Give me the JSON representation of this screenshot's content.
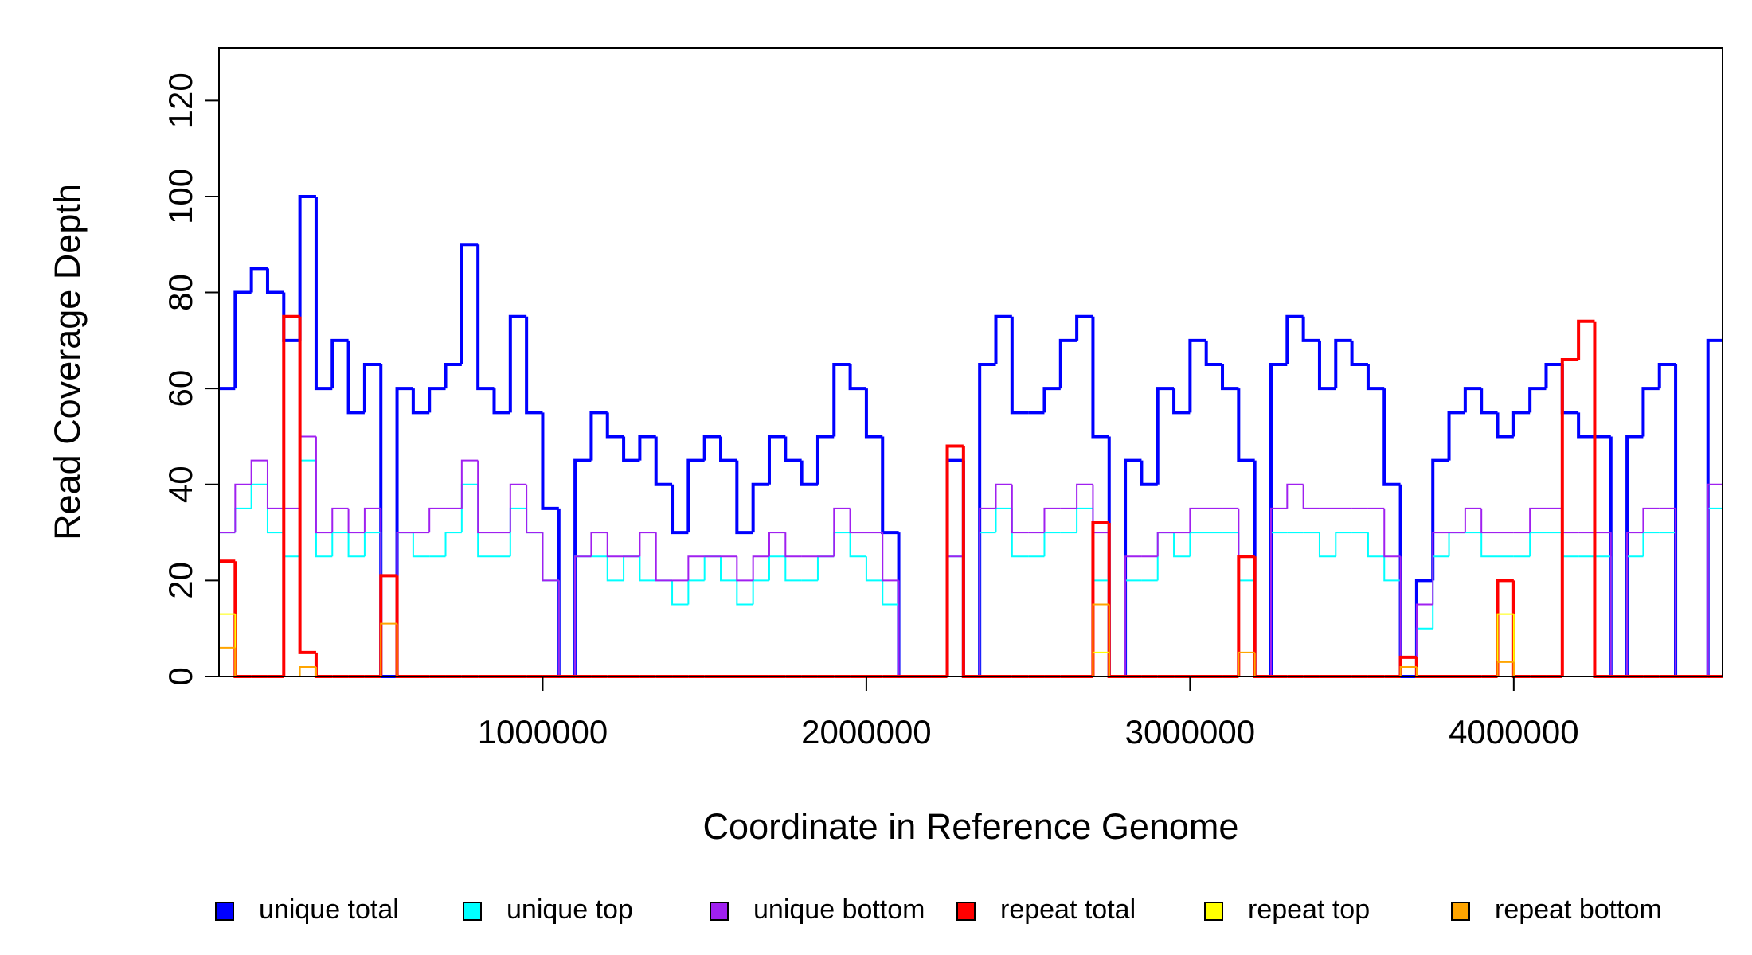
{
  "chart_data": {
    "type": "step",
    "xlabel": "Coordinate in Reference Genome",
    "ylabel": "Read Coverage Depth",
    "xlim": [
      0,
      4645000
    ],
    "ylim": [
      0,
      131
    ],
    "xticks": [
      1000000,
      2000000,
      3000000,
      4000000
    ],
    "yticks": [
      0,
      20,
      40,
      60,
      80,
      100,
      120
    ],
    "x": [
      0,
      50000,
      100000,
      150000,
      200000,
      250000,
      300000,
      350000,
      400000,
      450000,
      500000,
      550000,
      600000,
      650000,
      700000,
      750000,
      800000,
      850000,
      900000,
      950000,
      1000000,
      1050000,
      1100000,
      1150000,
      1200000,
      1250000,
      1300000,
      1350000,
      1400000,
      1450000,
      1500000,
      1550000,
      1600000,
      1650000,
      1700000,
      1750000,
      1800000,
      1850000,
      1900000,
      1950000,
      2000000,
      2050000,
      2100000,
      2150000,
      2200000,
      2250000,
      2300000,
      2350000,
      2400000,
      2450000,
      2500000,
      2550000,
      2600000,
      2650000,
      2700000,
      2750000,
      2800000,
      2850000,
      2900000,
      2950000,
      3000000,
      3050000,
      3100000,
      3150000,
      3200000,
      3250000,
      3300000,
      3350000,
      3400000,
      3450000,
      3500000,
      3550000,
      3600000,
      3650000,
      3700000,
      3750000,
      3800000,
      3850000,
      3900000,
      3950000,
      4000000,
      4050000,
      4100000,
      4150000,
      4200000,
      4250000,
      4300000,
      4350000,
      4400000,
      4450000,
      4500000,
      4550000,
      4600000
    ],
    "series": [
      {
        "name": "unique total",
        "color": "#0000ff",
        "values": [
          60,
          80,
          85,
          80,
          70,
          100,
          60,
          70,
          55,
          65,
          0,
          60,
          55,
          60,
          65,
          90,
          60,
          55,
          75,
          55,
          35,
          0,
          45,
          55,
          50,
          45,
          50,
          40,
          30,
          45,
          50,
          45,
          30,
          40,
          50,
          45,
          40,
          50,
          65,
          60,
          50,
          30,
          0,
          0,
          0,
          45,
          0,
          65,
          75,
          55,
          55,
          60,
          70,
          75,
          50,
          0,
          45,
          40,
          60,
          55,
          70,
          65,
          60,
          45,
          0,
          65,
          75,
          70,
          60,
          70,
          65,
          60,
          40,
          0,
          20,
          45,
          55,
          60,
          55,
          50,
          55,
          60,
          65,
          55,
          50,
          50,
          0,
          50,
          60,
          65,
          0,
          0,
          70
        ]
      },
      {
        "name": "unique top",
        "color": "#00ffff",
        "values": [
          30,
          35,
          40,
          30,
          25,
          45,
          25,
          30,
          25,
          30,
          0,
          30,
          25,
          25,
          30,
          40,
          25,
          25,
          35,
          30,
          20,
          0,
          25,
          25,
          20,
          25,
          20,
          20,
          15,
          20,
          25,
          20,
          15,
          20,
          25,
          20,
          20,
          25,
          30,
          25,
          20,
          15,
          0,
          0,
          0,
          25,
          0,
          30,
          35,
          25,
          25,
          30,
          30,
          35,
          20,
          0,
          20,
          20,
          30,
          25,
          30,
          30,
          30,
          20,
          0,
          30,
          30,
          30,
          25,
          30,
          30,
          25,
          20,
          0,
          10,
          25,
          30,
          30,
          25,
          25,
          25,
          30,
          30,
          25,
          25,
          25,
          0,
          25,
          30,
          30,
          0,
          0,
          35
        ]
      },
      {
        "name": "unique bottom",
        "color": "#a020f0",
        "values": [
          30,
          40,
          45,
          35,
          35,
          50,
          30,
          35,
          30,
          35,
          0,
          30,
          30,
          35,
          35,
          45,
          30,
          30,
          40,
          30,
          20,
          0,
          25,
          30,
          25,
          25,
          30,
          20,
          20,
          25,
          25,
          25,
          20,
          25,
          30,
          25,
          25,
          25,
          35,
          30,
          30,
          20,
          0,
          0,
          0,
          25,
          0,
          35,
          40,
          30,
          30,
          35,
          35,
          40,
          30,
          0,
          25,
          25,
          30,
          30,
          35,
          35,
          35,
          25,
          0,
          35,
          40,
          35,
          35,
          35,
          35,
          35,
          25,
          0,
          15,
          30,
          30,
          35,
          30,
          30,
          30,
          35,
          35,
          30,
          30,
          30,
          0,
          30,
          35,
          35,
          0,
          0,
          40
        ]
      },
      {
        "name": "repeat total",
        "color": "#ff0000",
        "values": [
          24,
          0,
          0,
          0,
          75,
          5,
          0,
          0,
          0,
          0,
          21,
          0,
          0,
          0,
          0,
          0,
          0,
          0,
          0,
          0,
          0,
          0,
          0,
          0,
          0,
          0,
          0,
          0,
          0,
          0,
          0,
          0,
          0,
          0,
          0,
          0,
          0,
          0,
          0,
          0,
          0,
          0,
          0,
          0,
          0,
          48,
          0,
          0,
          0,
          0,
          0,
          0,
          0,
          0,
          32,
          0,
          0,
          0,
          0,
          0,
          0,
          0,
          0,
          25,
          0,
          0,
          0,
          0,
          0,
          0,
          0,
          0,
          0,
          4,
          0,
          0,
          0,
          0,
          0,
          20,
          0,
          0,
          0,
          66,
          74,
          0,
          0,
          0,
          0,
          0,
          0,
          0,
          0
        ]
      },
      {
        "name": "repeat top",
        "color": "#ffff00",
        "values": [
          13,
          0,
          0,
          0,
          0,
          0,
          0,
          0,
          0,
          0,
          0,
          0,
          0,
          0,
          0,
          0,
          0,
          0,
          0,
          0,
          0,
          0,
          0,
          0,
          0,
          0,
          0,
          0,
          0,
          0,
          0,
          0,
          0,
          0,
          0,
          0,
          0,
          0,
          0,
          0,
          0,
          0,
          0,
          0,
          0,
          0,
          0,
          0,
          0,
          0,
          0,
          0,
          0,
          0,
          5,
          0,
          0,
          0,
          0,
          0,
          0,
          0,
          0,
          0,
          0,
          0,
          0,
          0,
          0,
          0,
          0,
          0,
          0,
          0,
          0,
          0,
          0,
          0,
          0,
          13,
          0,
          0,
          0,
          0,
          0,
          0,
          0,
          0,
          0,
          0,
          0,
          0,
          0
        ]
      },
      {
        "name": "repeat bottom",
        "color": "#ffa500",
        "values": [
          6,
          0,
          0,
          0,
          0,
          2,
          0,
          0,
          0,
          0,
          11,
          0,
          0,
          0,
          0,
          0,
          0,
          0,
          0,
          0,
          0,
          0,
          0,
          0,
          0,
          0,
          0,
          0,
          0,
          0,
          0,
          0,
          0,
          0,
          0,
          0,
          0,
          0,
          0,
          0,
          0,
          0,
          0,
          0,
          0,
          0,
          0,
          0,
          0,
          0,
          0,
          0,
          0,
          0,
          15,
          0,
          0,
          0,
          0,
          0,
          0,
          0,
          0,
          5,
          0,
          0,
          0,
          0,
          0,
          0,
          0,
          0,
          0,
          2,
          0,
          0,
          0,
          0,
          0,
          3,
          0,
          0,
          0,
          0,
          0,
          0,
          0,
          0,
          0,
          0,
          0,
          0,
          0
        ]
      }
    ]
  }
}
